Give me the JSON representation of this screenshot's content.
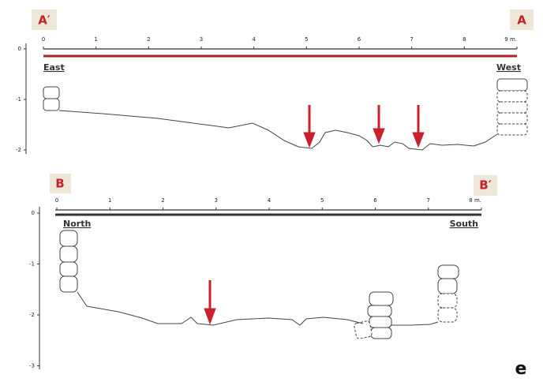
{
  "section_a": {
    "left_label": "A′",
    "right_label": "A",
    "scale_ticks": [
      "0",
      "1",
      "2",
      "3",
      "4",
      "5",
      "6",
      "7",
      "8",
      "9 m."
    ],
    "depth_ticks": [
      "0",
      "-1",
      "-2"
    ],
    "left_direction": "East",
    "right_direction": "West"
  },
  "section_b": {
    "left_label": "B",
    "right_label": "B′",
    "scale_ticks": [
      "0",
      "1",
      "2",
      "3",
      "4",
      "5",
      "6",
      "7",
      "8 m."
    ],
    "depth_ticks": [
      "0",
      "-1",
      "-2",
      "-3"
    ],
    "left_direction": "North",
    "right_direction": "South"
  },
  "panel_label": "e"
}
